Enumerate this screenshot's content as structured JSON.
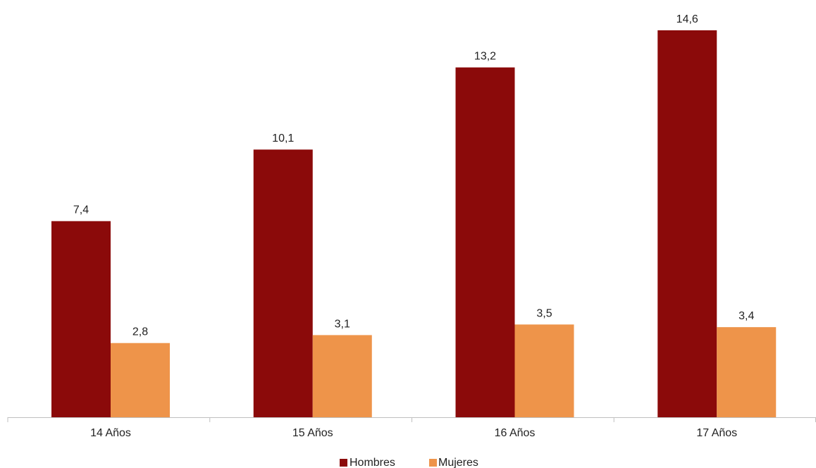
{
  "chart_data": {
    "type": "bar",
    "categories": [
      "14 Años",
      "15 Años",
      "16 Años",
      "17 Años"
    ],
    "series": [
      {
        "name": "Hombres",
        "values": [
          7.4,
          10.1,
          13.2,
          14.6
        ],
        "labels": [
          "7,4",
          "10,1",
          "13,2",
          "14,6"
        ],
        "color": "#8B0A0A"
      },
      {
        "name": "Mujeres",
        "values": [
          2.8,
          3.1,
          3.5,
          3.4
        ],
        "labels": [
          "2,8",
          "3,1",
          "3,5",
          "3,4"
        ],
        "color": "#EE944A"
      }
    ],
    "title": "",
    "xlabel": "",
    "ylabel": "",
    "ylim": [
      0,
      15
    ],
    "grid": false,
    "legend": "bottom-center",
    "axis_color": "#BFBFBF"
  }
}
